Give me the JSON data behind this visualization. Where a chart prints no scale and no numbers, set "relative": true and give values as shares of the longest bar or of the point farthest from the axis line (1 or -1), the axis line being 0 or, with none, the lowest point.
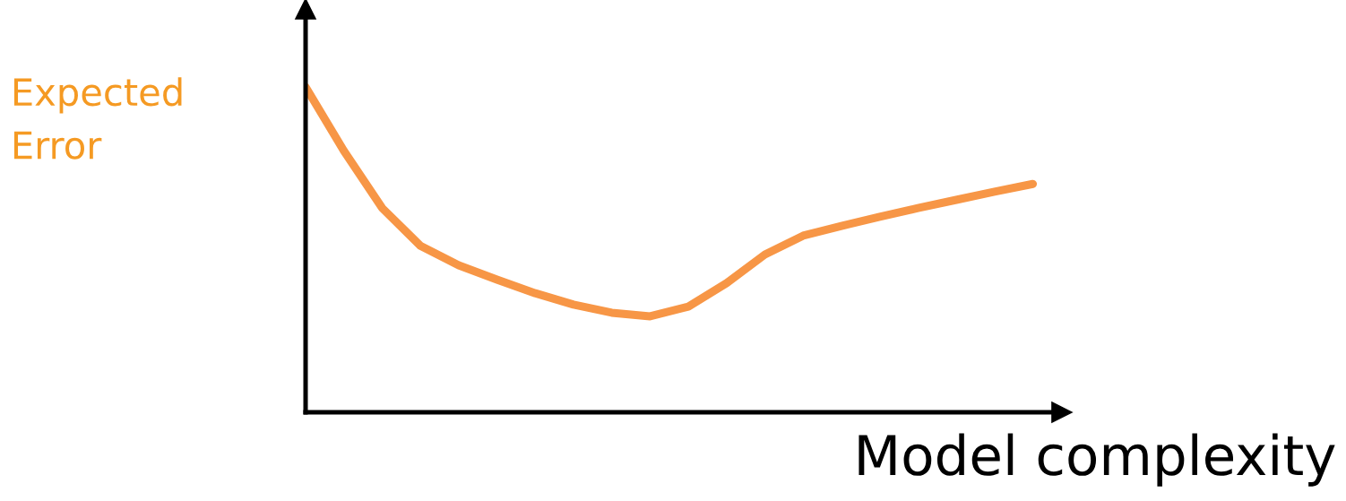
{
  "chart_data": {
    "type": "line",
    "relative": true,
    "xlabel": "Model complexity",
    "ylabel": "Expected\nError",
    "categories": [
      null,
      null,
      null,
      null,
      null,
      null,
      null,
      null,
      null,
      null,
      null,
      null,
      null,
      null,
      null,
      null,
      null,
      null,
      null,
      null
    ],
    "series": [
      {
        "color": "#f79646",
        "values": [
          1.0,
          0.804,
          0.628,
          0.512,
          0.452,
          0.408,
          0.366,
          0.331,
          0.306,
          0.295,
          0.325,
          0.397,
          0.485,
          0.543,
          0.573,
          0.601,
          0.628,
          0.653,
          0.678,
          0.702
        ]
      }
    ],
    "grid": false,
    "legend": false,
    "marker": "none",
    "line_style": "solid"
  }
}
